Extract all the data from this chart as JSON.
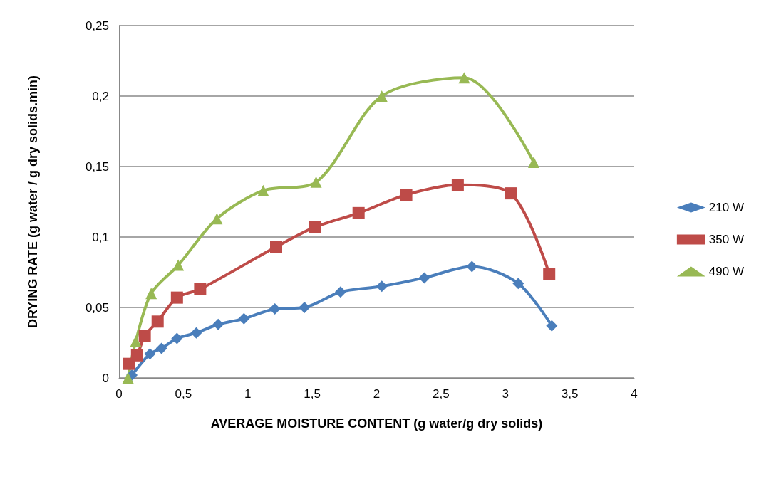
{
  "chart_data": {
    "type": "line",
    "xlabel": "AVERAGE MOISTURE CONTENT (g water/g dry solids)",
    "ylabel": "DRYING RATE (g water / g dry solids.min)",
    "xlim": [
      0,
      4
    ],
    "xticks": [
      0,
      {
        "value": 0.5,
        "label": "0,5"
      },
      1,
      {
        "value": 1.5,
        "label": "1,5"
      },
      2,
      {
        "value": 2.5,
        "label": "2,5"
      },
      3,
      {
        "value": 3.5,
        "label": "3,5"
      },
      4
    ],
    "ylim": [
      0,
      0.25
    ],
    "yticks": [
      0,
      {
        "value": 0.05,
        "label": "0,05"
      },
      {
        "value": 0.1,
        "label": "0,1"
      },
      {
        "value": 0.15,
        "label": "0,15"
      },
      {
        "value": 0.2,
        "label": "0,2"
      },
      {
        "value": 0.25,
        "label": "0,25"
      }
    ],
    "grid": "y",
    "legend": "right",
    "line_style": "solid",
    "series": [
      {
        "name": "210 W",
        "color": "#4a7ebb",
        "marker": "diamond",
        "x": [
          0.1,
          0.24,
          0.33,
          0.45,
          0.6,
          0.77,
          0.97,
          1.21,
          1.44,
          1.72,
          2.04,
          2.37,
          2.74,
          3.1,
          3.36
        ],
        "values": [
          0.002,
          0.017,
          0.021,
          0.028,
          0.032,
          0.038,
          0.042,
          0.049,
          0.05,
          0.061,
          0.065,
          0.071,
          0.079,
          0.067,
          0.037
        ]
      },
      {
        "name": "350 W",
        "color": "#be4b48",
        "marker": "square",
        "x": [
          0.08,
          0.14,
          0.2,
          0.3,
          0.45,
          0.63,
          1.22,
          1.52,
          1.86,
          2.23,
          2.63,
          3.04,
          3.34
        ],
        "values": [
          0.01,
          0.016,
          0.03,
          0.04,
          0.057,
          0.063,
          0.093,
          0.107,
          0.117,
          0.13,
          0.137,
          0.131,
          0.074
        ]
      },
      {
        "name": "490 W",
        "color": "#98b954",
        "marker": "triangle",
        "x": [
          0.07,
          0.13,
          0.25,
          0.46,
          0.76,
          1.12,
          1.53,
          2.04,
          2.68,
          3.22
        ],
        "values": [
          0,
          0.026,
          0.06,
          0.08,
          0.113,
          0.133,
          0.139,
          0.2,
          0.213,
          0.153
        ]
      }
    ]
  }
}
